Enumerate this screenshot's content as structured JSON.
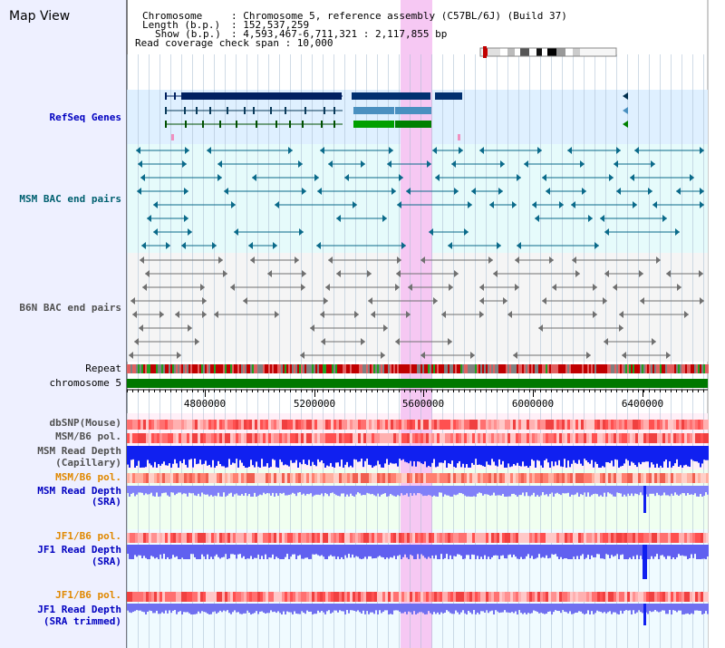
{
  "title": "Map View",
  "header": {
    "chromosome_key": "Chromosome",
    "chromosome_val": ": Chromosome 5, reference assembly (C57BL/6J) (Build 37)",
    "length_key": "Length (b.p.)",
    "length_val": ": 152,537,259",
    "show_key": "Show (b.p.)",
    "show_val": ": 4,593,467-6,711,321 : 2,117,855 bp",
    "coverage": "Read coverage check span : 10,000"
  },
  "tracks": {
    "refseq": "RefSeq Genes",
    "msm_bac": "MSM BAC end pairs",
    "b6n_bac": "B6N BAC end pairs",
    "repeat": "Repeat",
    "chromosome": "chromosome 5",
    "dbsnp": "dbSNP(Mouse)",
    "msm_b6_pol_1": "MSM/B6 pol.",
    "msm_depth_cap_1": "MSM Read Depth",
    "msm_depth_cap_2": "(Capillary)",
    "msm_b6_pol_2": "MSM/B6 pol.",
    "msm_depth_sra_1": "MSM Read Depth",
    "msm_depth_sra_2": "(SRA)",
    "jf1_b6_pol_1": "JF1/B6 pol.",
    "jf1_depth_sra_1": "JF1 Read Depth",
    "jf1_depth_sra_2": "(SRA)",
    "jf1_b6_pol_2": "JF1/B6 pol.",
    "jf1_depth_trim_1": "JF1 Read Depth",
    "jf1_depth_trim_2": "(SRA trimmed)"
  },
  "axis": {
    "ticks": [
      "4800000",
      "5200000",
      "5600000",
      "6000000",
      "6400000"
    ]
  },
  "colors": {
    "refseq_bg": "#dff0ff",
    "msm_bg": "#e6fbfb",
    "b6n_bg": "#f5f5f5",
    "highlight": "#f6c8f3",
    "label_blue": "#0000c0",
    "label_teal": "#006070",
    "label_gray": "#505050",
    "label_orange": "#e08800",
    "chrom_green": "#007800"
  }
}
